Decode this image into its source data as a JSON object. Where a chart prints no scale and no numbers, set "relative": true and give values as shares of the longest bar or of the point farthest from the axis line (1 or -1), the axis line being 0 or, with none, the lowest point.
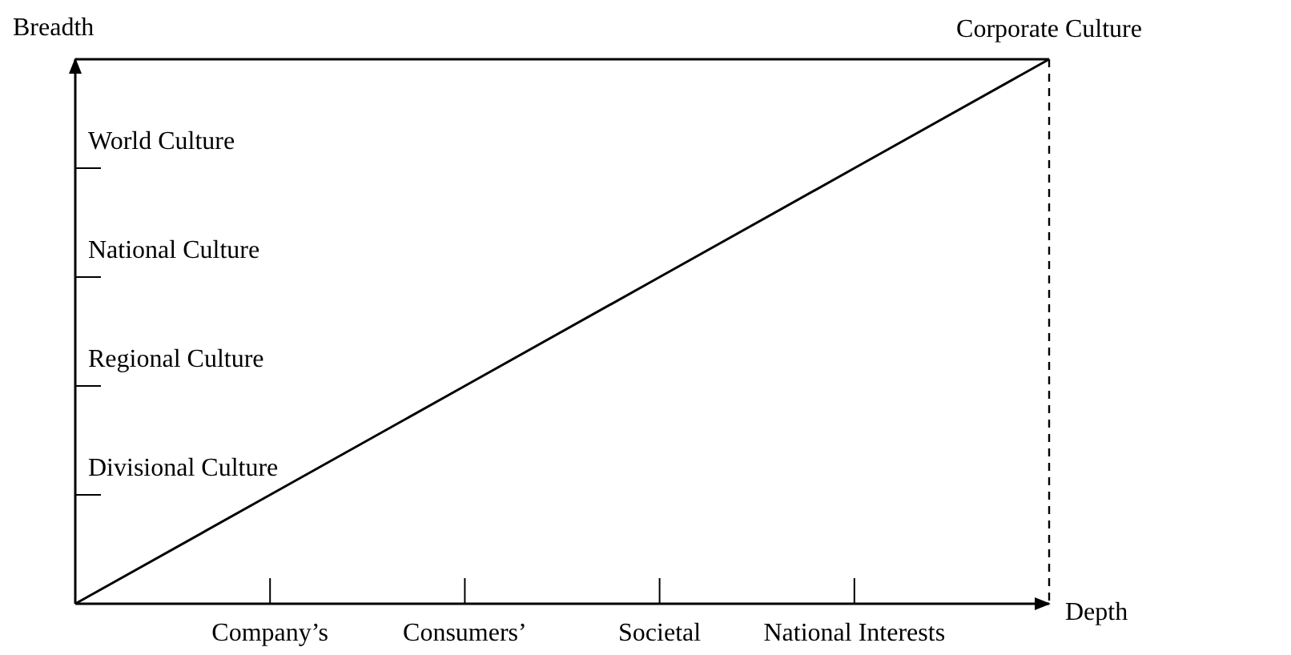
{
  "chart_data": {
    "type": "line",
    "relative": true,
    "xlabel": "Depth",
    "ylabel": "Breadth",
    "categories": [
      null,
      "Company’s",
      "Consumers’",
      "Societal",
      "National Interests",
      null
    ],
    "series": [
      {
        "values": [
          0,
          0.2,
          0.4,
          0.6,
          0.8,
          1
        ],
        "color": "#000000"
      }
    ],
    "annotations": [
      "World Culture",
      "National Culture",
      "Regional Culture",
      "Divisional Culture",
      {
        "text": "Corporate Culture",
        "y": 1
      }
    ],
    "grid": false,
    "marker": "none",
    "line_style": "solid"
  }
}
